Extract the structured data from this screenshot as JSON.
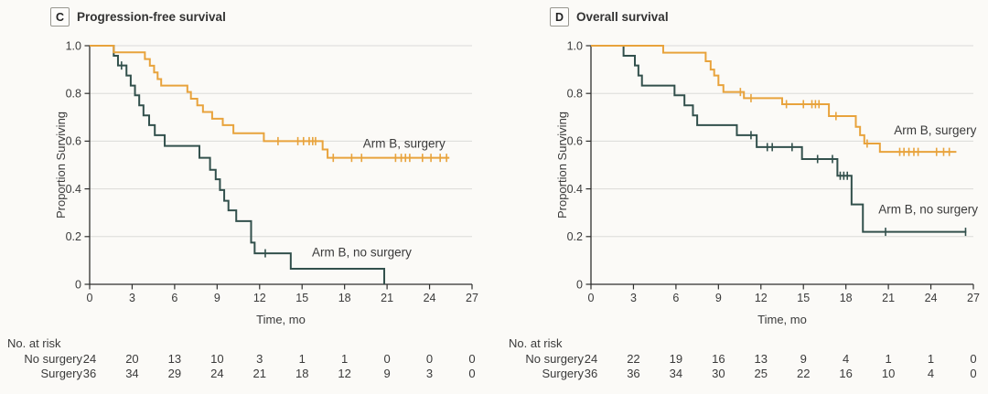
{
  "style": {
    "background": "#FBFAF7",
    "axis_color": "#2F2F2E",
    "grid_color": "#DBDBD8",
    "text_color": "#3A3A3A",
    "surgery_color": "#E8A33C",
    "no_surgery_color": "#32504C"
  },
  "chart_data": [
    {
      "type": "line",
      "subtype": "kaplan-meier-step",
      "panel_letter": "C",
      "title": "Progression-free survival",
      "xlabel": "Time, mo",
      "ylabel": "Proportion Surviving",
      "xlim": [
        0,
        27
      ],
      "ylim": [
        0,
        1.0
      ],
      "x_ticks": [
        0,
        3,
        6,
        9,
        12,
        15,
        18,
        21,
        24,
        27
      ],
      "y_ticks": [
        0,
        0.2,
        0.4,
        0.6,
        0.8,
        1.0
      ],
      "y_tick_labels": [
        "0",
        "0.2",
        "0.4",
        "0.6",
        "0.8",
        "1.0"
      ],
      "grid": "horizontal",
      "legend_position": "inline-labels",
      "series": [
        {
          "name": "Arm B, no surgery",
          "color": "#32504C",
          "label": {
            "t": 15.7,
            "s": 0.135
          },
          "steps": [
            [
              0,
              1
            ],
            [
              1.7,
              0.958
            ],
            [
              2.0,
              0.917
            ],
            [
              2.6,
              0.875
            ],
            [
              2.9,
              0.833
            ],
            [
              3.2,
              0.792
            ],
            [
              3.5,
              0.75
            ],
            [
              3.8,
              0.708
            ],
            [
              4.2,
              0.667
            ],
            [
              4.6,
              0.625
            ],
            [
              5.3,
              0.58
            ],
            [
              7.75,
              0.53
            ],
            [
              8.5,
              0.48
            ],
            [
              8.9,
              0.44
            ],
            [
              9.2,
              0.395
            ],
            [
              9.5,
              0.35
            ],
            [
              9.8,
              0.31
            ],
            [
              10.35,
              0.265
            ],
            [
              11.4,
              0.175
            ],
            [
              11.65,
              0.13
            ],
            [
              14.2,
              0.065
            ],
            [
              20.8,
              0
            ]
          ],
          "end_t": 20.8,
          "censors": [
            [
              2.25,
              0.917
            ],
            [
              12.4,
              0.13
            ]
          ]
        },
        {
          "name": "Arm B, surgery",
          "color": "#E8A33C",
          "label": {
            "t": 19.3,
            "s": 0.59
          },
          "steps": [
            [
              0,
              1
            ],
            [
              1.7,
              0.972
            ],
            [
              3.9,
              0.944
            ],
            [
              4.25,
              0.916
            ],
            [
              4.55,
              0.888
            ],
            [
              4.8,
              0.86
            ],
            [
              5.05,
              0.833
            ],
            [
              6.9,
              0.806
            ],
            [
              7.15,
              0.778
            ],
            [
              7.6,
              0.75
            ],
            [
              8.0,
              0.722
            ],
            [
              8.65,
              0.694
            ],
            [
              9.4,
              0.667
            ],
            [
              10.15,
              0.633
            ],
            [
              12.3,
              0.6
            ],
            [
              16.45,
              0.565
            ],
            [
              16.8,
              0.53
            ]
          ],
          "end_t": 25.4,
          "censors": [
            [
              13.3,
              0.6
            ],
            [
              14.7,
              0.6
            ],
            [
              15.1,
              0.6
            ],
            [
              15.5,
              0.6
            ],
            [
              15.75,
              0.6
            ],
            [
              15.95,
              0.6
            ],
            [
              17.2,
              0.53
            ],
            [
              18.5,
              0.53
            ],
            [
              19.2,
              0.53
            ],
            [
              21.6,
              0.53
            ],
            [
              22.0,
              0.53
            ],
            [
              22.3,
              0.53
            ],
            [
              22.6,
              0.53
            ],
            [
              23.5,
              0.53
            ],
            [
              24.1,
              0.53
            ],
            [
              24.75,
              0.53
            ],
            [
              25.2,
              0.53
            ]
          ]
        }
      ],
      "risk_table": {
        "title": "No. at risk",
        "rows": [
          {
            "label": "No surgery",
            "counts": [
              24,
              20,
              13,
              10,
              3,
              1,
              1,
              0,
              0,
              0
            ]
          },
          {
            "label": "Surgery",
            "counts": [
              36,
              34,
              29,
              24,
              21,
              18,
              12,
              9,
              3,
              0
            ]
          }
        ]
      }
    },
    {
      "type": "line",
      "subtype": "kaplan-meier-step",
      "panel_letter": "D",
      "title": "Overall survival",
      "xlabel": "Time, mo",
      "ylabel": "Proportion Surviving",
      "xlim": [
        0,
        27
      ],
      "ylim": [
        0,
        1.0
      ],
      "x_ticks": [
        0,
        3,
        6,
        9,
        12,
        15,
        18,
        21,
        24,
        27
      ],
      "y_ticks": [
        0,
        0.2,
        0.4,
        0.6,
        0.8,
        1.0
      ],
      "y_tick_labels": [
        "0",
        "0.2",
        "0.4",
        "0.6",
        "0.8",
        "1.0"
      ],
      "grid": "horizontal",
      "legend_position": "inline-labels",
      "series": [
        {
          "name": "Arm B, no surgery",
          "color": "#32504C",
          "label": {
            "t": 20.3,
            "s": 0.315
          },
          "steps": [
            [
              0,
              1
            ],
            [
              2.3,
              0.958
            ],
            [
              3.1,
              0.917
            ],
            [
              3.35,
              0.875
            ],
            [
              3.6,
              0.833
            ],
            [
              5.9,
              0.792
            ],
            [
              6.6,
              0.75
            ],
            [
              7.2,
              0.708
            ],
            [
              7.5,
              0.667
            ],
            [
              10.3,
              0.625
            ],
            [
              11.7,
              0.575
            ],
            [
              14.9,
              0.525
            ],
            [
              17.4,
              0.455
            ],
            [
              18.4,
              0.335
            ],
            [
              19.2,
              0.22
            ]
          ],
          "end_t": 26.5,
          "censors": [
            [
              11.3,
              0.625
            ],
            [
              12.45,
              0.575
            ],
            [
              12.8,
              0.575
            ],
            [
              14.2,
              0.575
            ],
            [
              16.0,
              0.525
            ],
            [
              17.05,
              0.525
            ],
            [
              17.6,
              0.455
            ],
            [
              17.85,
              0.455
            ],
            [
              18.1,
              0.455
            ],
            [
              20.8,
              0.22
            ],
            [
              26.45,
              0.22
            ]
          ]
        },
        {
          "name": "Arm B, surgery",
          "color": "#E8A33C",
          "label": {
            "t": 21.4,
            "s": 0.645
          },
          "steps": [
            [
              0,
              1
            ],
            [
              5.1,
              0.971
            ],
            [
              8.1,
              0.935
            ],
            [
              8.45,
              0.9
            ],
            [
              8.7,
              0.875
            ],
            [
              9.0,
              0.835
            ],
            [
              9.35,
              0.806
            ],
            [
              10.8,
              0.78
            ],
            [
              13.5,
              0.755
            ],
            [
              16.8,
              0.705
            ],
            [
              18.7,
              0.66
            ],
            [
              19.0,
              0.625
            ],
            [
              19.3,
              0.59
            ],
            [
              20.4,
              0.555
            ]
          ],
          "end_t": 25.8,
          "censors": [
            [
              10.55,
              0.806
            ],
            [
              11.3,
              0.78
            ],
            [
              13.8,
              0.755
            ],
            [
              15.0,
              0.755
            ],
            [
              15.6,
              0.755
            ],
            [
              15.85,
              0.755
            ],
            [
              16.1,
              0.755
            ],
            [
              17.3,
              0.705
            ],
            [
              19.5,
              0.59
            ],
            [
              21.8,
              0.555
            ],
            [
              22.1,
              0.555
            ],
            [
              22.45,
              0.555
            ],
            [
              22.8,
              0.555
            ],
            [
              23.1,
              0.555
            ],
            [
              24.4,
              0.555
            ],
            [
              24.9,
              0.555
            ],
            [
              25.3,
              0.555
            ]
          ]
        }
      ],
      "risk_table": {
        "title": "No. at risk",
        "rows": [
          {
            "label": "No surgery",
            "counts": [
              24,
              22,
              19,
              16,
              13,
              9,
              4,
              1,
              1,
              0
            ]
          },
          {
            "label": "Surgery",
            "counts": [
              36,
              36,
              34,
              30,
              25,
              22,
              16,
              10,
              4,
              0
            ]
          }
        ]
      }
    }
  ]
}
